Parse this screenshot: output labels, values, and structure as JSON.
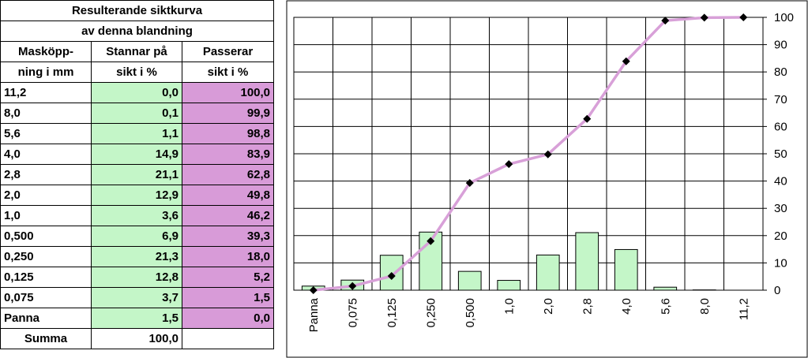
{
  "table": {
    "title_line1": "Resulterande siktkurva",
    "title_line2": "av denna blandning",
    "headers": {
      "mesh_line1": "Masköpp-",
      "mesh_line2": "ning i mm",
      "retained_line1": "Stannar på",
      "retained_line2": "sikt i %",
      "passing_line1": "Passerar",
      "passing_line2": "sikt i %"
    },
    "rows": [
      {
        "mesh": "11,2",
        "retained": "0,0",
        "passing": "100,0"
      },
      {
        "mesh": "8,0",
        "retained": "0,1",
        "passing": "99,9"
      },
      {
        "mesh": "5,6",
        "retained": "1,1",
        "passing": "98,8"
      },
      {
        "mesh": "4,0",
        "retained": "14,9",
        "passing": "83,9"
      },
      {
        "mesh": "2,8",
        "retained": "21,1",
        "passing": "62,8"
      },
      {
        "mesh": "2,0",
        "retained": "12,9",
        "passing": "49,8"
      },
      {
        "mesh": "1,0",
        "retained": "3,6",
        "passing": "46,2"
      },
      {
        "mesh": "0,500",
        "retained": "6,9",
        "passing": "39,3"
      },
      {
        "mesh": "0,250",
        "retained": "21,3",
        "passing": "18,0"
      },
      {
        "mesh": "0,125",
        "retained": "12,8",
        "passing": "5,2"
      },
      {
        "mesh": "0,075",
        "retained": "3,7",
        "passing": "1,5"
      },
      {
        "mesh": "Panna",
        "retained": "1,5",
        "passing": "0,0"
      }
    ],
    "sum_label": "Summa",
    "sum_value": "100,0"
  },
  "chart_data": {
    "type": "bar",
    "categories": [
      "Panna",
      "0,075",
      "0,125",
      "0,250",
      "0,500",
      "1,0",
      "2,0",
      "2,8",
      "4,0",
      "5,6",
      "8,0",
      "11,2"
    ],
    "series": [
      {
        "type": "bar",
        "values": [
          1.5,
          3.7,
          12.8,
          21.3,
          6.9,
          3.6,
          12.9,
          21.1,
          14.9,
          1.1,
          0.1,
          0.0
        ]
      },
      {
        "type": "line",
        "values": [
          0.0,
          1.5,
          5.2,
          18.0,
          39.3,
          46.2,
          49.8,
          62.8,
          83.9,
          98.8,
          99.9,
          100.0
        ]
      }
    ],
    "y_ticks": [
      "0",
      "10",
      "20",
      "30",
      "40",
      "50",
      "60",
      "70",
      "80",
      "90",
      "100"
    ],
    "ylim": [
      0,
      100
    ],
    "y_axis_position": "right",
    "grid": true,
    "colors": {
      "bar_fill": "#c4f6c8",
      "bar_stroke": "#000000",
      "line": "#d8a0d8",
      "marker": "#000000"
    }
  }
}
